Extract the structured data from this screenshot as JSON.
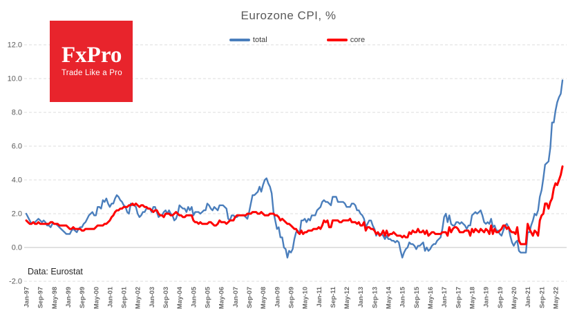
{
  "header": {
    "title": "Eurozone CPI, %"
  },
  "logo": {
    "brand": "FxPro",
    "tagline": "Trade Like a Pro",
    "bg_color": "#e8242c"
  },
  "source_note": "Data: Eurostat",
  "colors": {
    "total_line": "#4a7ebc",
    "core_line": "#fe0000",
    "grid": "#dcdcdc",
    "zero_line": "#cfcfcf"
  },
  "chart_data": {
    "type": "line",
    "title": "Eurozone CPI, %",
    "x_unit": "month",
    "x_range": [
      "Jan-1997",
      "Sep-2022"
    ],
    "xlabel": "",
    "ylabel": "",
    "ylim": [
      -2,
      12
    ],
    "grid": "dashed-horizontal, solid zero line",
    "legend_position": "top-center",
    "y_ticks": [
      12,
      10,
      8,
      6,
      4,
      2,
      0,
      -2
    ],
    "y_tick_labels": [
      "12.0",
      "10.0",
      "8.0",
      "6.0",
      "4.0",
      "2.0",
      "0.0",
      "-2.0"
    ],
    "x_tick_every_months": 8,
    "x_tick_labels": [
      "Jan-97",
      "Sep-97",
      "May-98",
      "Jan-99",
      "Sep-99",
      "May-00",
      "Jan-01",
      "Sep-01",
      "May-02",
      "Jan-03",
      "Sep-03",
      "May-04",
      "Jan-05",
      "Sep-05",
      "May-06",
      "Jan-07",
      "Sep-07",
      "May-08",
      "Jan-09",
      "Sep-09",
      "May-10",
      "Jan-11",
      "Sep-11",
      "May-12",
      "Jan-13",
      "Sep-13",
      "May-14",
      "Jan-15",
      "Sep-15",
      "May-16",
      "Jan-17",
      "Sep-17",
      "May-18",
      "Jan-19",
      "Sep-19",
      "May-20",
      "Jan-21",
      "Sep-21",
      "May-22"
    ],
    "series": [
      {
        "name": "total",
        "color": "#4a7ebc",
        "values": [
          2.0,
          1.8,
          1.6,
          1.4,
          1.5,
          1.5,
          1.6,
          1.7,
          1.6,
          1.5,
          1.6,
          1.5,
          1.3,
          1.3,
          1.2,
          1.4,
          1.4,
          1.4,
          1.3,
          1.2,
          1.1,
          1.0,
          0.9,
          0.8,
          0.8,
          0.8,
          1.0,
          1.1,
          1.0,
          0.9,
          1.1,
          1.2,
          1.2,
          1.4,
          1.5,
          1.7,
          1.9,
          2.0,
          2.1,
          1.9,
          1.9,
          2.4,
          2.4,
          2.3,
          2.8,
          2.7,
          2.9,
          2.6,
          2.4,
          2.6,
          2.6,
          2.9,
          3.1,
          3.0,
          2.8,
          2.7,
          2.5,
          2.4,
          2.1,
          2.0,
          2.6,
          2.5,
          2.5,
          2.4,
          2.0,
          1.8,
          1.9,
          2.1,
          2.1,
          2.3,
          2.3,
          2.3,
          2.1,
          2.4,
          2.4,
          2.1,
          1.8,
          1.9,
          1.9,
          2.1,
          2.2,
          2.0,
          2.2,
          2.0,
          1.9,
          1.6,
          1.7,
          2.0,
          2.5,
          2.4,
          2.3,
          2.3,
          2.1,
          2.4,
          2.2,
          2.4,
          1.9,
          2.1,
          2.1,
          2.1,
          2.0,
          2.1,
          2.2,
          2.2,
          2.6,
          2.5,
          2.3,
          2.2,
          2.4,
          2.3,
          2.2,
          2.5,
          2.5,
          2.5,
          2.4,
          2.3,
          1.7,
          1.6,
          1.9,
          1.9,
          1.8,
          1.8,
          1.9,
          1.9,
          1.9,
          1.9,
          1.8,
          1.7,
          2.1,
          2.6,
          3.1,
          3.1,
          3.2,
          3.3,
          3.6,
          3.3,
          3.7,
          4.0,
          4.1,
          3.8,
          3.6,
          3.2,
          2.1,
          1.6,
          1.1,
          1.2,
          0.6,
          0.6,
          0.0,
          -0.1,
          -0.6,
          -0.2,
          -0.3,
          -0.1,
          0.5,
          0.9,
          1.0,
          0.8,
          1.6,
          1.6,
          1.7,
          1.5,
          1.7,
          1.6,
          1.9,
          1.9,
          1.9,
          2.2,
          2.3,
          2.4,
          2.7,
          2.8,
          2.7,
          2.7,
          2.6,
          2.5,
          3.0,
          3.0,
          3.0,
          2.7,
          2.7,
          2.7,
          2.7,
          2.6,
          2.4,
          2.4,
          2.4,
          2.6,
          2.6,
          2.5,
          2.2,
          2.2,
          2.0,
          1.9,
          1.7,
          1.2,
          1.4,
          1.6,
          1.6,
          1.3,
          1.1,
          0.7,
          0.9,
          0.8,
          0.8,
          0.7,
          0.5,
          0.7,
          0.5,
          0.5,
          0.4,
          0.4,
          0.3,
          0.4,
          0.3,
          -0.2,
          -0.6,
          -0.3,
          -0.1,
          0.0,
          0.3,
          0.2,
          0.2,
          0.1,
          -0.1,
          0.1,
          0.1,
          0.2,
          0.3,
          -0.2,
          0.0,
          -0.2,
          -0.1,
          0.1,
          0.2,
          0.2,
          0.4,
          0.5,
          0.6,
          1.1,
          1.8,
          2.0,
          1.5,
          1.9,
          1.4,
          1.3,
          1.3,
          1.5,
          1.5,
          1.4,
          1.5,
          1.4,
          1.3,
          1.1,
          1.3,
          1.3,
          1.9,
          2.0,
          2.1,
          2.0,
          2.1,
          2.2,
          1.9,
          1.5,
          1.4,
          1.5,
          1.4,
          1.7,
          1.2,
          1.3,
          1.0,
          1.0,
          0.8,
          0.7,
          1.0,
          1.3,
          1.4,
          1.2,
          0.7,
          0.3,
          0.1,
          0.3,
          0.4,
          -0.2,
          -0.3,
          -0.3,
          -0.3,
          -0.3,
          0.9,
          0.9,
          1.3,
          1.6,
          2.0,
          1.9,
          2.2,
          3.0,
          3.4,
          4.1,
          4.9,
          5.0,
          5.1,
          5.9,
          7.4,
          7.4,
          8.1,
          8.6,
          8.9,
          9.1,
          9.9
        ]
      },
      {
        "name": "core",
        "color": "#fe0000",
        "values": [
          1.6,
          1.5,
          1.4,
          1.4,
          1.5,
          1.4,
          1.4,
          1.5,
          1.4,
          1.4,
          1.4,
          1.4,
          1.4,
          1.4,
          1.5,
          1.5,
          1.4,
          1.4,
          1.4,
          1.3,
          1.3,
          1.3,
          1.3,
          1.3,
          1.2,
          1.1,
          1.1,
          1.2,
          1.1,
          1.1,
          1.1,
          1.1,
          1.0,
          1.0,
          1.1,
          1.1,
          1.1,
          1.1,
          1.1,
          1.1,
          1.2,
          1.3,
          1.3,
          1.3,
          1.3,
          1.4,
          1.4,
          1.5,
          1.6,
          1.8,
          1.9,
          2.1,
          2.2,
          2.2,
          2.3,
          2.3,
          2.4,
          2.4,
          2.4,
          2.5,
          2.5,
          2.6,
          2.5,
          2.6,
          2.5,
          2.4,
          2.5,
          2.5,
          2.4,
          2.4,
          2.3,
          2.3,
          2.2,
          2.1,
          2.2,
          2.2,
          2.0,
          1.9,
          1.9,
          1.8,
          2.0,
          2.0,
          2.0,
          1.9,
          1.9,
          2.0,
          2.1,
          2.0,
          1.9,
          1.9,
          1.8,
          1.8,
          1.9,
          1.9,
          1.9,
          1.9,
          1.6,
          1.5,
          1.5,
          1.4,
          1.5,
          1.4,
          1.4,
          1.4,
          1.4,
          1.5,
          1.5,
          1.4,
          1.3,
          1.3,
          1.4,
          1.6,
          1.5,
          1.5,
          1.5,
          1.4,
          1.5,
          1.6,
          1.6,
          1.6,
          1.8,
          1.9,
          1.9,
          1.9,
          1.9,
          1.9,
          1.9,
          2.0,
          2.0,
          2.0,
          2.1,
          2.1,
          2.1,
          2.0,
          2.0,
          2.1,
          2.0,
          1.9,
          1.9,
          1.9,
          2.0,
          2.0,
          2.0,
          1.9,
          1.9,
          1.8,
          1.6,
          1.7,
          1.6,
          1.5,
          1.4,
          1.4,
          1.3,
          1.2,
          1.1,
          1.1,
          0.9,
          0.8,
          1.0,
          0.8,
          0.9,
          0.9,
          1.0,
          1.0,
          1.0,
          1.1,
          1.1,
          1.1,
          1.2,
          1.1,
          1.3,
          1.6,
          1.5,
          1.6,
          1.2,
          1.2,
          1.6,
          1.6,
          1.6,
          1.6,
          1.5,
          1.5,
          1.6,
          1.6,
          1.6,
          1.6,
          1.7,
          1.5,
          1.5,
          1.5,
          1.4,
          1.5,
          1.3,
          1.3,
          1.5,
          1.0,
          1.2,
          1.2,
          1.1,
          1.1,
          1.0,
          0.8,
          0.9,
          0.7,
          0.8,
          1.0,
          0.7,
          1.0,
          0.7,
          0.8,
          0.8,
          0.9,
          0.8,
          0.7,
          0.7,
          0.7,
          0.6,
          0.7,
          0.6,
          0.6,
          0.9,
          0.8,
          1.0,
          0.9,
          0.9,
          1.1,
          0.9,
          0.9,
          1.0,
          0.8,
          1.0,
          0.7,
          0.8,
          0.9,
          0.9,
          0.8,
          0.8,
          0.8,
          0.8,
          0.9,
          0.9,
          0.9,
          0.7,
          1.2,
          0.9,
          1.1,
          1.2,
          1.2,
          1.1,
          0.9,
          0.9,
          0.9,
          1.0,
          1.0,
          1.0,
          0.7,
          1.1,
          0.9,
          1.1,
          1.0,
          0.9,
          1.1,
          1.0,
          0.9,
          1.1,
          1.0,
          0.8,
          1.3,
          0.8,
          1.1,
          0.9,
          0.9,
          1.0,
          1.1,
          1.3,
          1.3,
          1.1,
          1.2,
          1.0,
          0.9,
          0.9,
          0.8,
          1.2,
          0.4,
          0.2,
          0.2,
          0.2,
          0.2,
          1.4,
          1.1,
          0.9,
          0.7,
          1.0,
          0.9,
          0.7,
          1.6,
          1.9,
          2.0,
          2.6,
          2.6,
          2.3,
          2.7,
          2.9,
          3.5,
          3.8,
          3.7,
          4.0,
          4.3,
          4.8
        ]
      }
    ]
  }
}
